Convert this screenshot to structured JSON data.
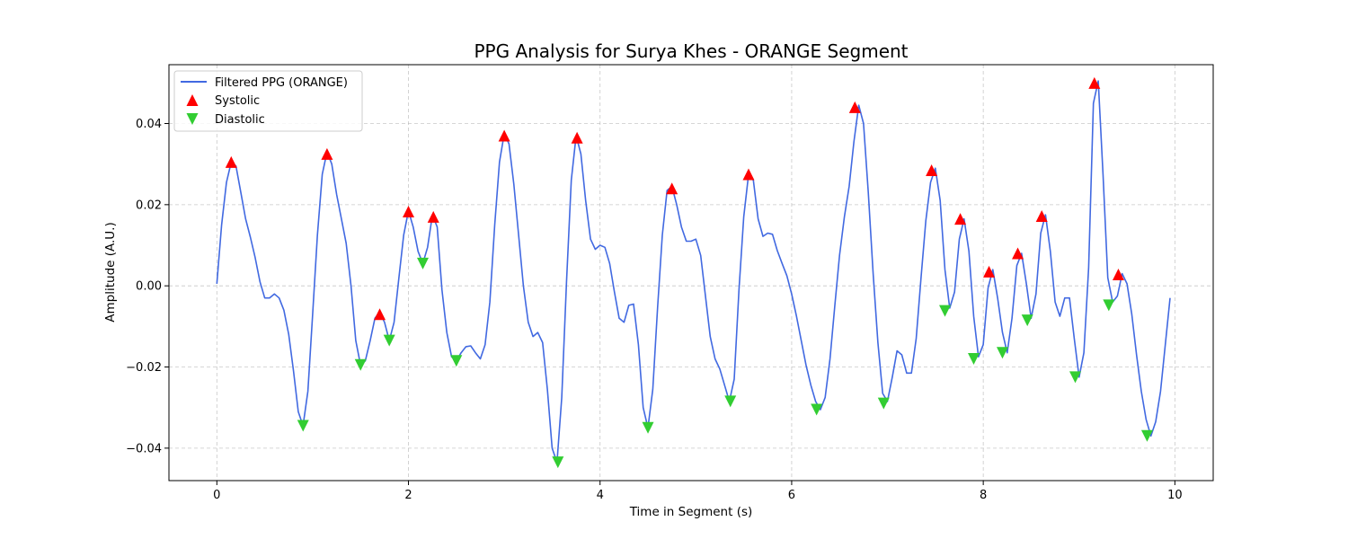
{
  "chart_data": {
    "type": "line",
    "title": "PPG Analysis for Surya Khes - ORANGE Segment",
    "xlabel": "Time in Segment (s)",
    "ylabel": "Amplitude (A.U.)",
    "xlim": [
      -0.5,
      10.4
    ],
    "ylim": [
      -0.048,
      0.0545
    ],
    "xticks": [
      0,
      2,
      4,
      6,
      8,
      10
    ],
    "xtick_labels": [
      "0",
      "2",
      "4",
      "6",
      "8",
      "10"
    ],
    "yticks": [
      -0.04,
      -0.02,
      0.0,
      0.02,
      0.04
    ],
    "ytick_labels": [
      "−0.04",
      "−0.02",
      "0.00",
      "0.02",
      "0.04"
    ],
    "grid": true,
    "legend_position": "top-left",
    "colors": {
      "line": "#4169e1",
      "systolic": "#ff0000",
      "diastolic": "#32cd32"
    },
    "series": [
      {
        "name": "Filtered PPG (ORANGE)",
        "kind": "line",
        "x": [
          0.0,
          0.05,
          0.1,
          0.15,
          0.2,
          0.25,
          0.3,
          0.35,
          0.4,
          0.45,
          0.5,
          0.55,
          0.6,
          0.65,
          0.7,
          0.75,
          0.8,
          0.85,
          0.9,
          0.95,
          1.0,
          1.05,
          1.1,
          1.15,
          1.2,
          1.25,
          1.3,
          1.35,
          1.4,
          1.45,
          1.5,
          1.55,
          1.6,
          1.65,
          1.7,
          1.75,
          1.8,
          1.85,
          1.9,
          1.95,
          2.0,
          2.05,
          2.1,
          2.15,
          2.2,
          2.25,
          2.3,
          2.35,
          2.4,
          2.45,
          2.5,
          2.55,
          2.6,
          2.65,
          2.7,
          2.75,
          2.8,
          2.85,
          2.9,
          2.95,
          3.0,
          3.05,
          3.1,
          3.15,
          3.2,
          3.25,
          3.3,
          3.35,
          3.4,
          3.45,
          3.5,
          3.55,
          3.6,
          3.65,
          3.7,
          3.75,
          3.8,
          3.85,
          3.9,
          3.95,
          4.0,
          4.05,
          4.1,
          4.15,
          4.2,
          4.25,
          4.3,
          4.35,
          4.4,
          4.45,
          4.5,
          4.55,
          4.6,
          4.65,
          4.7,
          4.75,
          4.8,
          4.85,
          4.9,
          4.95,
          5.0,
          5.05,
          5.1,
          5.15,
          5.2,
          5.25,
          5.3,
          5.35,
          5.4,
          5.45,
          5.5,
          5.55,
          5.6,
          5.65,
          5.7,
          5.75,
          5.8,
          5.85,
          5.9,
          5.95,
          6.0,
          6.05,
          6.1,
          6.15,
          6.2,
          6.25,
          6.3,
          6.35,
          6.4,
          6.45,
          6.5,
          6.55,
          6.6,
          6.65,
          6.7,
          6.75,
          6.8,
          6.85,
          6.9,
          6.95,
          7.0,
          7.05,
          7.1,
          7.15,
          7.2,
          7.25,
          7.3,
          7.35,
          7.4,
          7.45,
          7.5,
          7.55,
          7.6,
          7.65,
          7.7,
          7.75,
          7.8,
          7.85,
          7.9,
          7.95,
          8.0,
          8.05,
          8.1,
          8.15,
          8.2,
          8.25,
          8.3,
          8.35,
          8.4,
          8.45,
          8.5,
          8.55,
          8.6,
          8.65,
          8.7,
          8.75,
          8.8,
          8.85,
          8.9,
          8.95,
          9.0,
          9.05,
          9.1,
          9.15,
          9.2,
          9.25,
          9.3,
          9.35,
          9.4,
          9.45,
          9.5,
          9.55,
          9.6,
          9.65,
          9.7,
          9.75,
          9.8,
          9.85,
          9.9,
          9.95
        ],
        "y": [
          0.0005,
          0.015,
          0.0255,
          0.0305,
          0.0295,
          0.023,
          0.0165,
          0.012,
          0.007,
          0.001,
          -0.003,
          -0.003,
          -0.002,
          -0.003,
          -0.006,
          -0.012,
          -0.021,
          -0.031,
          -0.0345,
          -0.026,
          -0.007,
          0.0125,
          0.0275,
          0.033,
          0.03,
          0.0225,
          0.0165,
          0.0105,
          0.0,
          -0.0135,
          -0.0195,
          -0.0185,
          -0.0135,
          -0.008,
          -0.0065,
          -0.009,
          -0.0135,
          -0.009,
          0.002,
          0.0125,
          0.0185,
          0.0145,
          0.0085,
          0.0055,
          0.0095,
          0.0175,
          0.0145,
          -0.001,
          -0.0115,
          -0.0175,
          -0.0185,
          -0.0165,
          -0.015,
          -0.0148,
          -0.0165,
          -0.018,
          -0.0145,
          -0.004,
          0.015,
          0.0305,
          0.0375,
          0.035,
          0.025,
          0.0125,
          0.0,
          -0.009,
          -0.0125,
          -0.0115,
          -0.014,
          -0.0255,
          -0.04,
          -0.0435,
          -0.0275,
          0.001,
          0.026,
          0.037,
          0.0325,
          0.021,
          0.0115,
          0.009,
          0.01,
          0.0095,
          0.0055,
          -0.0015,
          -0.008,
          -0.009,
          -0.0048,
          -0.0045,
          -0.0145,
          -0.03,
          -0.035,
          -0.0255,
          -0.0055,
          0.0125,
          0.0235,
          0.0245,
          0.02,
          0.0145,
          0.011,
          0.011,
          0.0115,
          0.0075,
          -0.0025,
          -0.0125,
          -0.018,
          -0.0205,
          -0.0245,
          -0.0285,
          -0.023,
          -0.001,
          0.017,
          0.0275,
          0.026,
          0.0165,
          0.0122,
          0.013,
          0.0127,
          0.0087,
          0.0055,
          0.0025,
          -0.002,
          -0.0075,
          -0.0135,
          -0.0195,
          -0.0245,
          -0.0285,
          -0.0305,
          -0.0275,
          -0.018,
          -0.005,
          0.0075,
          0.017,
          0.0245,
          0.0355,
          0.0445,
          0.04,
          0.023,
          0.003,
          -0.014,
          -0.0265,
          -0.0285,
          -0.0225,
          -0.016,
          -0.017,
          -0.0215,
          -0.0215,
          -0.013,
          0.002,
          0.016,
          0.0255,
          0.029,
          0.021,
          0.004,
          -0.0055,
          -0.0015,
          0.0115,
          0.0165,
          0.0085,
          -0.0075,
          -0.0175,
          -0.0145,
          -0.0005,
          0.004,
          -0.003,
          -0.0115,
          -0.0165,
          -0.008,
          0.005,
          0.008,
          0.0005,
          -0.008,
          -0.002,
          0.013,
          0.0175,
          0.0085,
          -0.004,
          -0.0075,
          -0.003,
          -0.003,
          -0.013,
          -0.0225,
          -0.0165,
          0.0045,
          0.045,
          0.0505,
          0.0275,
          0.002,
          -0.004,
          -0.0025,
          0.003,
          0.0005,
          -0.007,
          -0.017,
          -0.026,
          -0.033,
          -0.037,
          -0.0335,
          -0.026,
          -0.0145,
          -0.003
        ]
      },
      {
        "name": "Systolic",
        "kind": "markers",
        "marker": "triangle-up",
        "x": [
          0.15,
          1.15,
          1.7,
          2.0,
          2.26,
          3.0,
          3.76,
          4.75,
          5.55,
          6.66,
          7.46,
          7.76,
          8.06,
          8.36,
          8.61,
          9.16,
          9.41
        ],
        "y": [
          0.0305,
          0.0325,
          -0.007,
          0.0183,
          0.017,
          0.037,
          0.0365,
          0.024,
          0.0275,
          0.044,
          0.0285,
          0.0165,
          0.0035,
          0.008,
          0.0172,
          0.05,
          0.0028
        ]
      },
      {
        "name": "Diastolic",
        "kind": "markers",
        "marker": "triangle-down",
        "x": [
          0.9,
          1.5,
          1.8,
          2.15,
          2.5,
          3.56,
          4.5,
          5.36,
          6.26,
          6.96,
          7.6,
          7.9,
          8.2,
          8.46,
          8.96,
          9.31,
          9.71
        ],
        "y": [
          -0.0345,
          -0.0195,
          -0.0135,
          0.0055,
          -0.0185,
          -0.0435,
          -0.035,
          -0.0285,
          -0.0305,
          -0.029,
          -0.0062,
          -0.018,
          -0.0165,
          -0.0085,
          -0.0225,
          -0.0048,
          -0.037
        ]
      }
    ]
  }
}
